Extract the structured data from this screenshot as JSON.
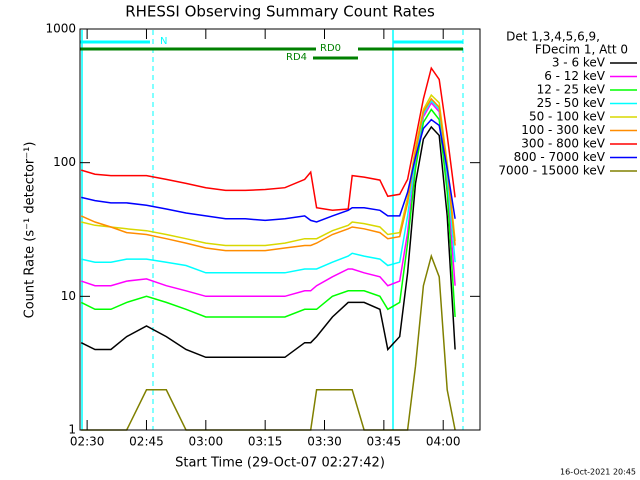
{
  "chart_data": {
    "type": "line",
    "title": "RHESSI Observing Summary Count Rates",
    "xlabel": "Start Time (29-Oct-07 02:27:42)",
    "ylabel": "Count Rate (s⁻¹ detector⁻¹)",
    "log_y": true,
    "xlim": [
      148.2,
      249.3
    ],
    "xticks": [
      {
        "value": 150,
        "label": "02:30"
      },
      {
        "value": 165,
        "label": "02:45"
      },
      {
        "value": 180,
        "label": "03:00"
      },
      {
        "value": 195,
        "label": "03:15"
      },
      {
        "value": 210,
        "label": "03:30"
      },
      {
        "value": 225,
        "label": "03:45"
      },
      {
        "value": 240,
        "label": "04:00"
      }
    ],
    "ylim": [
      1,
      1000
    ],
    "yticks": [
      1,
      10,
      100,
      1000
    ],
    "legend_header": [
      "Det 1,3,4,5,6,9,",
      "FDecim 1, Att 0"
    ],
    "legend_position": "right",
    "annotations": [
      "N",
      "RD0",
      "RD4"
    ],
    "footer": "16-Oct-2021 20:45",
    "x": [
      148.5,
      152,
      156,
      160,
      165,
      170,
      175,
      180,
      185,
      190,
      195,
      200,
      205,
      206.5,
      208,
      212,
      216,
      217,
      220,
      224,
      226,
      229,
      231,
      233,
      235,
      237,
      239,
      241,
      243
    ],
    "series": [
      {
        "name": "3 - 6 keV",
        "color": "#000000",
        "values": [
          4.5,
          4,
          4,
          5,
          6,
          5,
          4,
          3.5,
          3.5,
          3.5,
          3.5,
          3.5,
          4.5,
          4.5,
          5,
          7,
          9,
          9,
          9,
          8,
          4,
          5,
          15,
          70,
          150,
          185,
          160,
          40,
          4
        ]
      },
      {
        "name": "6 - 12 keV",
        "color": "#ff00ff",
        "values": [
          13,
          12,
          12,
          13,
          13.5,
          12,
          11,
          10,
          10,
          10,
          10,
          10,
          11,
          11,
          12,
          14,
          16,
          16,
          15,
          14,
          12,
          13,
          30,
          100,
          220,
          280,
          240,
          70,
          12
        ]
      },
      {
        "name": "12 - 25 keV",
        "color": "#00ff00",
        "values": [
          9,
          8,
          8,
          9,
          10,
          9,
          8,
          7,
          7,
          7,
          7,
          7,
          8,
          8,
          8,
          10,
          11,
          11,
          11,
          10,
          8,
          9,
          25,
          90,
          200,
          250,
          210,
          60,
          7
        ]
      },
      {
        "name": "25 - 50 keV",
        "color": "#00ffff",
        "values": [
          19,
          18,
          18,
          19,
          19,
          18,
          17,
          15,
          15,
          15,
          15,
          15,
          16,
          16,
          16,
          18,
          20,
          21,
          20,
          19,
          17,
          18,
          40,
          110,
          230,
          290,
          250,
          80,
          18
        ]
      },
      {
        "name": "50 - 100 keV",
        "color": "#d8d800",
        "values": [
          36,
          34,
          33,
          32,
          31,
          29,
          27,
          25,
          24,
          24,
          24,
          25,
          27,
          27,
          27,
          31,
          34,
          36,
          35,
          33,
          29,
          30,
          55,
          130,
          250,
          320,
          280,
          100,
          26
        ]
      },
      {
        "name": "100 - 300 keV",
        "color": "#ff8c00",
        "values": [
          40,
          36,
          33,
          30,
          29,
          27,
          25,
          23,
          22,
          22,
          22,
          23,
          24,
          24,
          25,
          29,
          32,
          33,
          32,
          30,
          27,
          28,
          50,
          120,
          240,
          300,
          260,
          90,
          24
        ]
      },
      {
        "name": "300 - 800 keV",
        "color": "#ff0000",
        "values": [
          88,
          82,
          80,
          80,
          80,
          75,
          70,
          65,
          62,
          62,
          63,
          65,
          75,
          85,
          46,
          44,
          45,
          80,
          78,
          74,
          56,
          58,
          75,
          150,
          300,
          510,
          420,
          160,
          55
        ]
      },
      {
        "name": "800 - 7000 keV",
        "color": "#0000ff",
        "values": [
          55,
          52,
          50,
          50,
          48,
          45,
          42,
          40,
          38,
          38,
          37,
          38,
          40,
          37,
          36,
          40,
          44,
          46,
          46,
          44,
          40,
          40,
          60,
          110,
          180,
          210,
          190,
          90,
          38
        ]
      },
      {
        "name": "7000 - 15000 keV",
        "color": "#808000",
        "values": [
          1,
          1,
          1,
          1,
          2,
          2,
          1,
          1,
          1,
          1,
          1,
          1,
          1,
          1,
          2,
          2,
          2,
          2,
          1,
          1,
          1,
          1,
          1,
          3,
          12,
          20,
          14,
          2,
          1
        ]
      }
    ]
  }
}
